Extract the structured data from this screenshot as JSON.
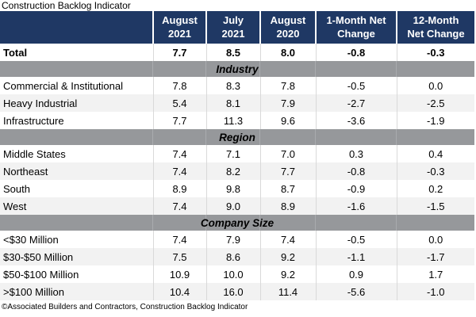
{
  "colors": {
    "header_bg": "#1F3864",
    "header_text": "#FFFFFF",
    "section_band_bg": "#96989B",
    "row_alt_bg": "#F2F2F2",
    "grid_line": "#D9D9D9",
    "text": "#000000"
  },
  "chart_data": {
    "type": "table",
    "title": "Construction Backlog Indicator",
    "footnote": "©Associated Builders and Contractors, Construction Backlog Indicator",
    "columns": [
      {
        "line1": "",
        "line2": ""
      },
      {
        "line1": "August",
        "line2": "2021"
      },
      {
        "line1": "July",
        "line2": "2021"
      },
      {
        "line1": "August",
        "line2": "2020"
      },
      {
        "line1": "1-Month Net",
        "line2": "Change"
      },
      {
        "line1": "12-Month",
        "line2": "Net Change"
      }
    ],
    "total_row": {
      "label": "Total",
      "values": [
        "7.7",
        "8.5",
        "8.0",
        "-0.8",
        "-0.3"
      ]
    },
    "sections": [
      {
        "name": "Industry",
        "rows": [
          {
            "label": "Commercial & Institutional",
            "values": [
              "7.8",
              "8.3",
              "7.8",
              "-0.5",
              "0.0"
            ]
          },
          {
            "label": "Heavy Industrial",
            "values": [
              "5.4",
              "8.1",
              "7.9",
              "-2.7",
              "-2.5"
            ]
          },
          {
            "label": "Infrastructure",
            "values": [
              "7.7",
              "11.3",
              "9.6",
              "-3.6",
              "-1.9"
            ]
          }
        ]
      },
      {
        "name": "Region",
        "rows": [
          {
            "label": "Middle States",
            "values": [
              "7.4",
              "7.1",
              "7.0",
              "0.3",
              "0.4"
            ]
          },
          {
            "label": "Northeast",
            "values": [
              "7.4",
              "8.2",
              "7.7",
              "-0.8",
              "-0.3"
            ]
          },
          {
            "label": "South",
            "values": [
              "8.9",
              "9.8",
              "8.7",
              "-0.9",
              "0.2"
            ]
          },
          {
            "label": "West",
            "values": [
              "7.4",
              "9.0",
              "8.9",
              "-1.6",
              "-1.5"
            ]
          }
        ]
      },
      {
        "name": "Company Size",
        "rows": [
          {
            "label": "<$30 Million",
            "values": [
              "7.4",
              "7.9",
              "7.4",
              "-0.5",
              "0.0"
            ]
          },
          {
            "label": "$30-$50 Million",
            "values": [
              "7.5",
              "8.6",
              "9.2",
              "-1.1",
              "-1.7"
            ]
          },
          {
            "label": "$50-$100 Million",
            "values": [
              "10.9",
              "10.0",
              "9.2",
              "0.9",
              "1.7"
            ]
          },
          {
            "label": ">$100 Million",
            "values": [
              "10.4",
              "16.0",
              "11.4",
              "-5.6",
              "-1.0"
            ]
          }
        ]
      }
    ]
  }
}
